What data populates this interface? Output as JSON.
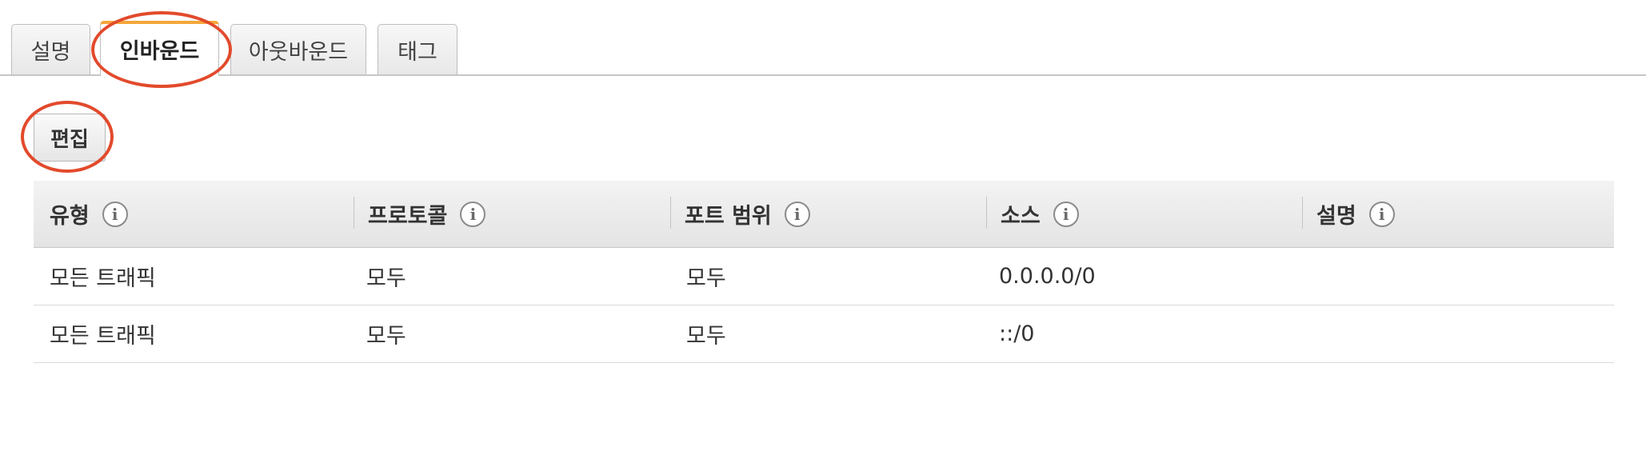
{
  "tabs": [
    {
      "label": "설명",
      "active": false
    },
    {
      "label": "인바운드",
      "active": true
    },
    {
      "label": "아웃바운드",
      "active": false
    },
    {
      "label": "태그",
      "active": false
    }
  ],
  "toolbar": {
    "edit_label": "편집"
  },
  "table": {
    "columns": [
      "유형",
      "프로토콜",
      "포트 범위",
      "소스",
      "설명"
    ],
    "info_icon_glyph": "i",
    "rows": [
      [
        "모든 트래픽",
        "모두",
        "모두",
        "0.0.0.0/0",
        ""
      ],
      [
        "모든 트래픽",
        "모두",
        "모두",
        "::/0",
        ""
      ]
    ]
  },
  "colors": {
    "highlight_ring": "#e24a2c",
    "active_tab_accent": "#f5a73a"
  },
  "icons": {
    "column_info": "info-circle-icon"
  }
}
